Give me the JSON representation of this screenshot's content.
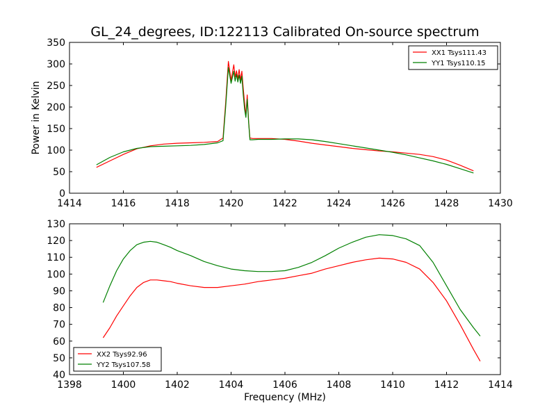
{
  "figure": {
    "title": "GL_24_degrees, ID:122113 Calibrated On-source spectrum"
  },
  "chart_data": [
    {
      "type": "line",
      "title": "GL_24_degrees, ID:122113 Calibrated On-source spectrum",
      "xlabel": "",
      "ylabel": "Power in Kelvin",
      "xlim": [
        1414,
        1430
      ],
      "ylim": [
        0,
        350
      ],
      "xticks": [
        1414,
        1416,
        1418,
        1420,
        1422,
        1424,
        1426,
        1428,
        1430
      ],
      "yticks": [
        0,
        50,
        100,
        150,
        200,
        250,
        300,
        350
      ],
      "grid": false,
      "legend_position": "top-right",
      "series": [
        {
          "name": "XX1 Tsys111.43",
          "color": "#ff0000",
          "x": [
            1415.0,
            1415.5,
            1416.0,
            1416.5,
            1417.0,
            1417.5,
            1418.0,
            1418.5,
            1419.0,
            1419.5,
            1419.7,
            1419.8,
            1419.9,
            1420.0,
            1420.1,
            1420.15,
            1420.2,
            1420.25,
            1420.3,
            1420.35,
            1420.4,
            1420.45,
            1420.5,
            1420.55,
            1420.6,
            1420.65,
            1420.7,
            1420.8,
            1421.0,
            1421.5,
            1422.0,
            1422.5,
            1423.0,
            1423.5,
            1424.0,
            1424.5,
            1425.0,
            1425.5,
            1426.0,
            1426.5,
            1427.0,
            1427.5,
            1428.0,
            1428.5,
            1429.0
          ],
          "y": [
            60,
            75,
            90,
            103,
            110,
            114,
            116,
            117,
            118,
            120,
            128,
            210,
            306,
            262,
            298,
            270,
            284,
            265,
            287,
            262,
            283,
            245,
            210,
            180,
            228,
            168,
            128,
            127,
            127,
            127,
            125,
            121,
            116,
            112,
            108,
            104,
            101,
            98,
            96,
            93,
            90,
            85,
            77,
            65,
            52
          ]
        },
        {
          "name": "YY1 Tsys110.15",
          "color": "#008000",
          "x": [
            1415.0,
            1415.5,
            1416.0,
            1416.5,
            1417.0,
            1417.5,
            1418.0,
            1418.5,
            1419.0,
            1419.5,
            1419.7,
            1419.8,
            1419.9,
            1420.0,
            1420.1,
            1420.15,
            1420.2,
            1420.25,
            1420.3,
            1420.35,
            1420.4,
            1420.45,
            1420.5,
            1420.55,
            1420.6,
            1420.65,
            1420.7,
            1420.8,
            1421.0,
            1421.5,
            1422.0,
            1422.5,
            1423.0,
            1423.5,
            1424.0,
            1424.5,
            1425.0,
            1425.5,
            1426.0,
            1426.5,
            1427.0,
            1427.5,
            1428.0,
            1428.5,
            1429.0
          ],
          "y": [
            66,
            83,
            96,
            104,
            108,
            109,
            110,
            111,
            113,
            117,
            122,
            200,
            292,
            255,
            283,
            260,
            276,
            258,
            274,
            255,
            272,
            230,
            195,
            176,
            218,
            165,
            124,
            124,
            125,
            125,
            126,
            126,
            124,
            120,
            115,
            110,
            105,
            100,
            95,
            89,
            82,
            75,
            67,
            57,
            47
          ]
        }
      ]
    },
    {
      "type": "line",
      "title": "",
      "xlabel": "Frequency (MHz)",
      "ylabel": "",
      "xlim": [
        1398,
        1414
      ],
      "ylim": [
        40,
        130
      ],
      "xticks": [
        1398,
        1400,
        1402,
        1404,
        1406,
        1408,
        1410,
        1412,
        1414
      ],
      "yticks": [
        40,
        50,
        60,
        70,
        80,
        90,
        100,
        110,
        120,
        130
      ],
      "grid": false,
      "legend_position": "bottom-left",
      "series": [
        {
          "name": "XX2 Tsys92.96",
          "color": "#ff0000",
          "x": [
            1399.25,
            1399.5,
            1399.75,
            1400.0,
            1400.25,
            1400.5,
            1400.75,
            1401.0,
            1401.25,
            1401.5,
            1401.75,
            1402.0,
            1402.5,
            1403.0,
            1403.5,
            1404.0,
            1404.5,
            1405.0,
            1405.5,
            1406.0,
            1406.5,
            1407.0,
            1407.5,
            1408.0,
            1408.5,
            1409.0,
            1409.5,
            1410.0,
            1410.5,
            1411.0,
            1411.5,
            1412.0,
            1412.5,
            1413.0,
            1413.25
          ],
          "y": [
            62,
            68,
            75,
            81,
            87,
            92,
            95,
            96.5,
            96.5,
            96,
            95.5,
            94.5,
            93,
            92,
            92,
            93,
            94,
            95.5,
            96.5,
            97.5,
            99,
            100.5,
            103,
            105,
            107,
            108.5,
            109.5,
            109,
            107,
            103,
            95,
            84,
            70,
            55,
            48
          ]
        },
        {
          "name": "YY2 Tsys107.58",
          "color": "#008000",
          "x": [
            1399.25,
            1399.5,
            1399.75,
            1400.0,
            1400.25,
            1400.5,
            1400.75,
            1401.0,
            1401.25,
            1401.5,
            1401.75,
            1402.0,
            1402.5,
            1403.0,
            1403.5,
            1404.0,
            1404.5,
            1405.0,
            1405.5,
            1406.0,
            1406.5,
            1407.0,
            1407.5,
            1408.0,
            1408.5,
            1409.0,
            1409.5,
            1410.0,
            1410.5,
            1411.0,
            1411.5,
            1412.0,
            1412.5,
            1413.0,
            1413.25
          ],
          "y": [
            83,
            93,
            102,
            109,
            114,
            117.5,
            119,
            119.5,
            119,
            117.5,
            116,
            114,
            111,
            107.5,
            105,
            103,
            102,
            101.5,
            101.5,
            102,
            104,
            107,
            111,
            115.5,
            119,
            122,
            123.5,
            123,
            121,
            117,
            107,
            93,
            79,
            68,
            63
          ]
        }
      ]
    }
  ]
}
